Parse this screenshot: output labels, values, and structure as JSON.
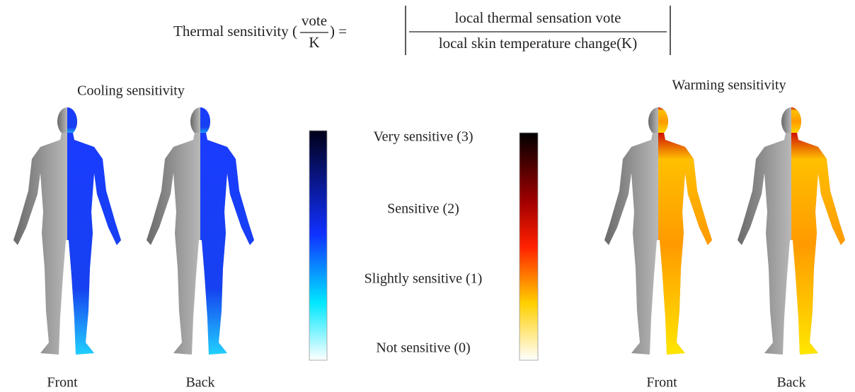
{
  "formula": {
    "left": "Thermal sensitivity (",
    "left_numerator": "vote",
    "left_denominator": "K",
    "equals": ") =",
    "right_numerator": "local thermal sensation vote",
    "right_denominator": "local skin temperature change(K)"
  },
  "cooling": {
    "title": "Cooling sensitivity",
    "front": "Front",
    "back": "Back"
  },
  "warming": {
    "title": "Warming sensitivity",
    "front": "Front",
    "back": "Back"
  },
  "scale": [
    "Very sensitive (3)",
    "Sensitive (2)",
    "Slightly sensitive (1)",
    "Not sensitive (0)"
  ]
}
